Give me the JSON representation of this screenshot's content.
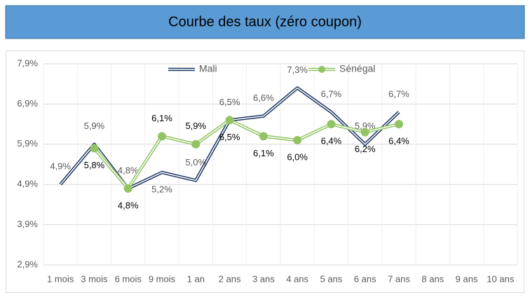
{
  "chart_data": {
    "type": "line",
    "title": "Courbe des taux (zéro coupon)",
    "categories": [
      "1 mois",
      "3 mois",
      "6 mois",
      "9 mois",
      "1 an",
      "2 ans",
      "3 ans",
      "4 ans",
      "5 ans",
      "6 ans",
      "7 ans",
      "8 ans",
      "9 ans",
      "10 ans"
    ],
    "series": [
      {
        "name": "Mali",
        "color": "#1f3864",
        "values": [
          4.9,
          5.9,
          4.8,
          5.2,
          5.0,
          6.5,
          6.6,
          7.3,
          6.7,
          5.9,
          6.7,
          null,
          null,
          null
        ],
        "value_labels": [
          "4,9%",
          "5,9%",
          "4,8%",
          "5,2%",
          "5,0%",
          "6,5%",
          "6,6%",
          "7,3%",
          "6,7%",
          "5,9%",
          "6,7%",
          null,
          null,
          null
        ]
      },
      {
        "name": "Sénégal",
        "color": "#92c464",
        "values": [
          null,
          5.8,
          4.8,
          6.1,
          5.9,
          6.5,
          6.1,
          6.0,
          6.4,
          6.2,
          6.4,
          null,
          null,
          null
        ],
        "value_labels": [
          null,
          "5,8%",
          "4,8%",
          "6,1%",
          "5,9%",
          "6,5%",
          "6,1%",
          "6,0%",
          "6,4%",
          "6,2%",
          "6,4%",
          null,
          null,
          null
        ]
      }
    ],
    "ylim": [
      2.9,
      7.9
    ],
    "yticks": [
      {
        "value": 2.9,
        "label": "2,9%"
      },
      {
        "value": 3.9,
        "label": "3,9%"
      },
      {
        "value": 4.9,
        "label": "4,9%"
      },
      {
        "value": 5.9,
        "label": "5,9%"
      },
      {
        "value": 6.9,
        "label": "6,9%"
      },
      {
        "value": 7.9,
        "label": "7,9%"
      }
    ],
    "grid": true,
    "legend": "top"
  }
}
